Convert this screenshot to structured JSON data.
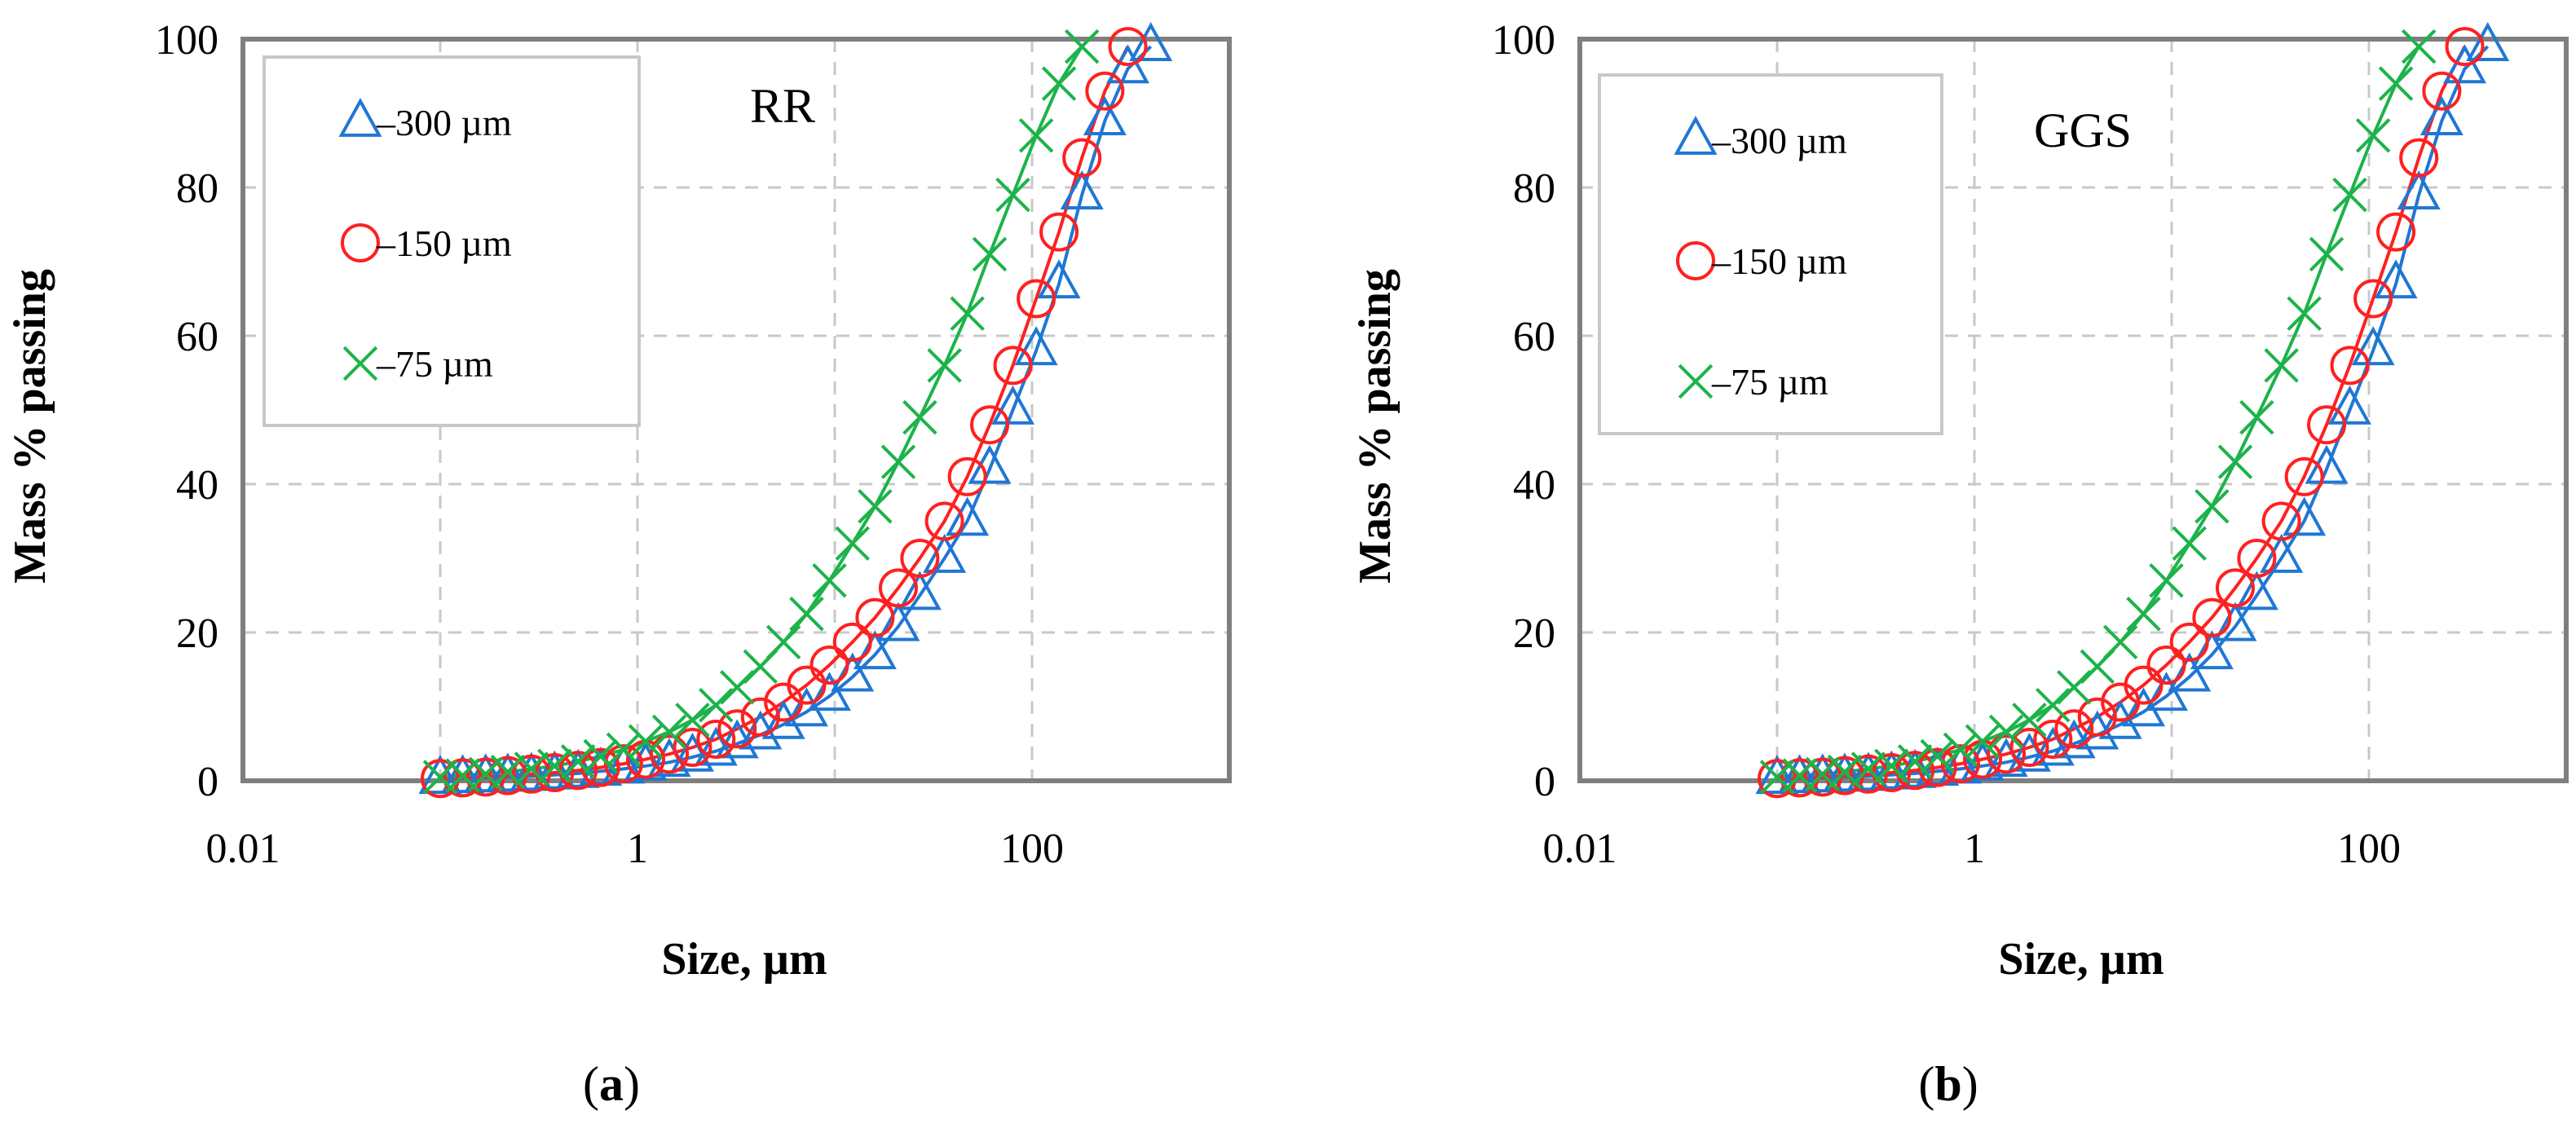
{
  "chart_data": [
    {
      "type": "scatter",
      "panel_label": "a",
      "title": "RR",
      "xlabel": "Size, µm",
      "ylabel": "Mass % passing",
      "x_scale": "log",
      "xlim": [
        0.01,
        1000
      ],
      "ylim": [
        0,
        100
      ],
      "x_tick_labels": [
        "0.01",
        "1",
        "100"
      ],
      "y_tick_labels": [
        "0",
        "20",
        "40",
        "60",
        "80",
        "100"
      ],
      "grid": true,
      "legend_position": "top-left",
      "series": [
        {
          "name": "–300 µm",
          "marker": "triangle",
          "color": "#1f77d4",
          "points": [
            [
              0.1,
              0.2
            ],
            [
              0.13,
              0.3
            ],
            [
              0.17,
              0.4
            ],
            [
              0.22,
              0.5
            ],
            [
              0.29,
              0.6
            ],
            [
              0.38,
              0.8
            ],
            [
              0.5,
              1.0
            ],
            [
              0.65,
              1.3
            ],
            [
              0.85,
              1.6
            ],
            [
              1.1,
              2.0
            ],
            [
              1.45,
              2.5
            ],
            [
              1.9,
              3.2
            ],
            [
              2.5,
              4.0
            ],
            [
              3.2,
              5.0
            ],
            [
              4.2,
              6.2
            ],
            [
              5.5,
              7.6
            ],
            [
              7.2,
              9.3
            ],
            [
              9.4,
              11.4
            ],
            [
              12.3,
              14.0
            ],
            [
              16,
              17.0
            ],
            [
              21,
              20.8
            ],
            [
              27,
              25
            ],
            [
              36,
              30
            ],
            [
              47,
              35
            ],
            [
              61,
              42
            ],
            [
              80,
              50
            ],
            [
              105,
              58
            ],
            [
              137,
              67
            ],
            [
              179,
              79
            ],
            [
              234,
              89
            ],
            [
              306,
              96
            ],
            [
              400,
              99
            ]
          ]
        },
        {
          "name": "–150 µm",
          "marker": "circle",
          "color": "#ff2020",
          "points": [
            [
              0.1,
              0.3
            ],
            [
              0.13,
              0.4
            ],
            [
              0.17,
              0.5
            ],
            [
              0.22,
              0.7
            ],
            [
              0.29,
              0.9
            ],
            [
              0.38,
              1.1
            ],
            [
              0.5,
              1.4
            ],
            [
              0.65,
              1.8
            ],
            [
              0.85,
              2.3
            ],
            [
              1.1,
              2.9
            ],
            [
              1.45,
              3.6
            ],
            [
              1.9,
              4.5
            ],
            [
              2.5,
              5.6
            ],
            [
              3.2,
              7.0
            ],
            [
              4.2,
              8.6
            ],
            [
              5.5,
              10.6
            ],
            [
              7.2,
              12.9
            ],
            [
              9.4,
              15.6
            ],
            [
              12.3,
              18.7
            ],
            [
              16,
              22
            ],
            [
              21,
              26
            ],
            [
              27,
              30
            ],
            [
              36,
              35
            ],
            [
              47,
              41
            ],
            [
              61,
              48
            ],
            [
              80,
              56
            ],
            [
              105,
              65
            ],
            [
              137,
              74
            ],
            [
              179,
              84
            ],
            [
              234,
              93
            ],
            [
              306,
              99
            ]
          ]
        },
        {
          "name": "–75 µm",
          "marker": "x",
          "color": "#1db34a",
          "points": [
            [
              0.1,
              0.5
            ],
            [
              0.13,
              0.7
            ],
            [
              0.17,
              0.9
            ],
            [
              0.22,
              1.2
            ],
            [
              0.29,
              1.6
            ],
            [
              0.38,
              2.0
            ],
            [
              0.5,
              2.6
            ],
            [
              0.65,
              3.3
            ],
            [
              0.85,
              4.2
            ],
            [
              1.1,
              5.3
            ],
            [
              1.45,
              6.6
            ],
            [
              1.9,
              8.2
            ],
            [
              2.5,
              10.2
            ],
            [
              3.2,
              12.6
            ],
            [
              4.2,
              15.4
            ],
            [
              5.5,
              18.7
            ],
            [
              7.2,
              22.5
            ],
            [
              9.4,
              27
            ],
            [
              12.3,
              32
            ],
            [
              16,
              37
            ],
            [
              21,
              43
            ],
            [
              27,
              49
            ],
            [
              36,
              56
            ],
            [
              47,
              63
            ],
            [
              61,
              71
            ],
            [
              80,
              79
            ],
            [
              105,
              87
            ],
            [
              137,
              94
            ],
            [
              179,
              99
            ]
          ]
        }
      ]
    },
    {
      "type": "scatter",
      "panel_label": "b",
      "title": "GGS",
      "xlabel": "Size, µm",
      "ylabel": "Mass % passing",
      "x_scale": "log",
      "xlim": [
        0.01,
        1000
      ],
      "ylim": [
        0,
        100
      ],
      "x_tick_labels": [
        "0.01",
        "1",
        "100"
      ],
      "y_tick_labels": [
        "0",
        "20",
        "40",
        "60",
        "80",
        "100"
      ],
      "grid": true,
      "legend_position": "top-left",
      "series": [
        {
          "name": "–300 µm",
          "marker": "triangle",
          "color": "#1f77d4",
          "points": [
            [
              0.1,
              0.2
            ],
            [
              0.13,
              0.3
            ],
            [
              0.17,
              0.4
            ],
            [
              0.22,
              0.5
            ],
            [
              0.29,
              0.6
            ],
            [
              0.38,
              0.8
            ],
            [
              0.5,
              1.0
            ],
            [
              0.65,
              1.3
            ],
            [
              0.85,
              1.6
            ],
            [
              1.1,
              2.0
            ],
            [
              1.45,
              2.5
            ],
            [
              1.9,
              3.2
            ],
            [
              2.5,
              4.0
            ],
            [
              3.2,
              5.0
            ],
            [
              4.2,
              6.2
            ],
            [
              5.5,
              7.6
            ],
            [
              7.2,
              9.3
            ],
            [
              9.4,
              11.4
            ],
            [
              12.3,
              14.0
            ],
            [
              16,
              17.0
            ],
            [
              21,
              20.8
            ],
            [
              27,
              25
            ],
            [
              36,
              30
            ],
            [
              47,
              35
            ],
            [
              61,
              42
            ],
            [
              80,
              50
            ],
            [
              105,
              58
            ],
            [
              137,
              67
            ],
            [
              179,
              79
            ],
            [
              234,
              89
            ],
            [
              306,
              96
            ],
            [
              400,
              99
            ]
          ]
        },
        {
          "name": "–150 µm",
          "marker": "circle",
          "color": "#ff2020",
          "points": [
            [
              0.1,
              0.3
            ],
            [
              0.13,
              0.4
            ],
            [
              0.17,
              0.5
            ],
            [
              0.22,
              0.7
            ],
            [
              0.29,
              0.9
            ],
            [
              0.38,
              1.1
            ],
            [
              0.5,
              1.4
            ],
            [
              0.65,
              1.8
            ],
            [
              0.85,
              2.3
            ],
            [
              1.1,
              2.9
            ],
            [
              1.45,
              3.6
            ],
            [
              1.9,
              4.5
            ],
            [
              2.5,
              5.6
            ],
            [
              3.2,
              7.0
            ],
            [
              4.2,
              8.6
            ],
            [
              5.5,
              10.6
            ],
            [
              7.2,
              12.9
            ],
            [
              9.4,
              15.6
            ],
            [
              12.3,
              18.7
            ],
            [
              16,
              22
            ],
            [
              21,
              26
            ],
            [
              27,
              30
            ],
            [
              36,
              35
            ],
            [
              47,
              41
            ],
            [
              61,
              48
            ],
            [
              80,
              56
            ],
            [
              105,
              65
            ],
            [
              137,
              74
            ],
            [
              179,
              84
            ],
            [
              234,
              93
            ],
            [
              306,
              99
            ]
          ]
        },
        {
          "name": "–75 µm",
          "marker": "x",
          "color": "#1db34a",
          "points": [
            [
              0.1,
              0.5
            ],
            [
              0.13,
              0.7
            ],
            [
              0.17,
              0.9
            ],
            [
              0.22,
              1.2
            ],
            [
              0.29,
              1.6
            ],
            [
              0.38,
              2.0
            ],
            [
              0.5,
              2.6
            ],
            [
              0.65,
              3.3
            ],
            [
              0.85,
              4.2
            ],
            [
              1.1,
              5.3
            ],
            [
              1.45,
              6.6
            ],
            [
              1.9,
              8.2
            ],
            [
              2.5,
              10.2
            ],
            [
              3.2,
              12.6
            ],
            [
              4.2,
              15.4
            ],
            [
              5.5,
              18.7
            ],
            [
              7.2,
              22.5
            ],
            [
              9.4,
              27
            ],
            [
              12.3,
              32
            ],
            [
              16,
              37
            ],
            [
              21,
              43
            ],
            [
              27,
              49
            ],
            [
              36,
              56
            ],
            [
              47,
              63
            ],
            [
              61,
              71
            ],
            [
              80,
              79
            ],
            [
              105,
              87
            ],
            [
              137,
              94
            ],
            [
              179,
              99
            ]
          ]
        }
      ]
    }
  ]
}
